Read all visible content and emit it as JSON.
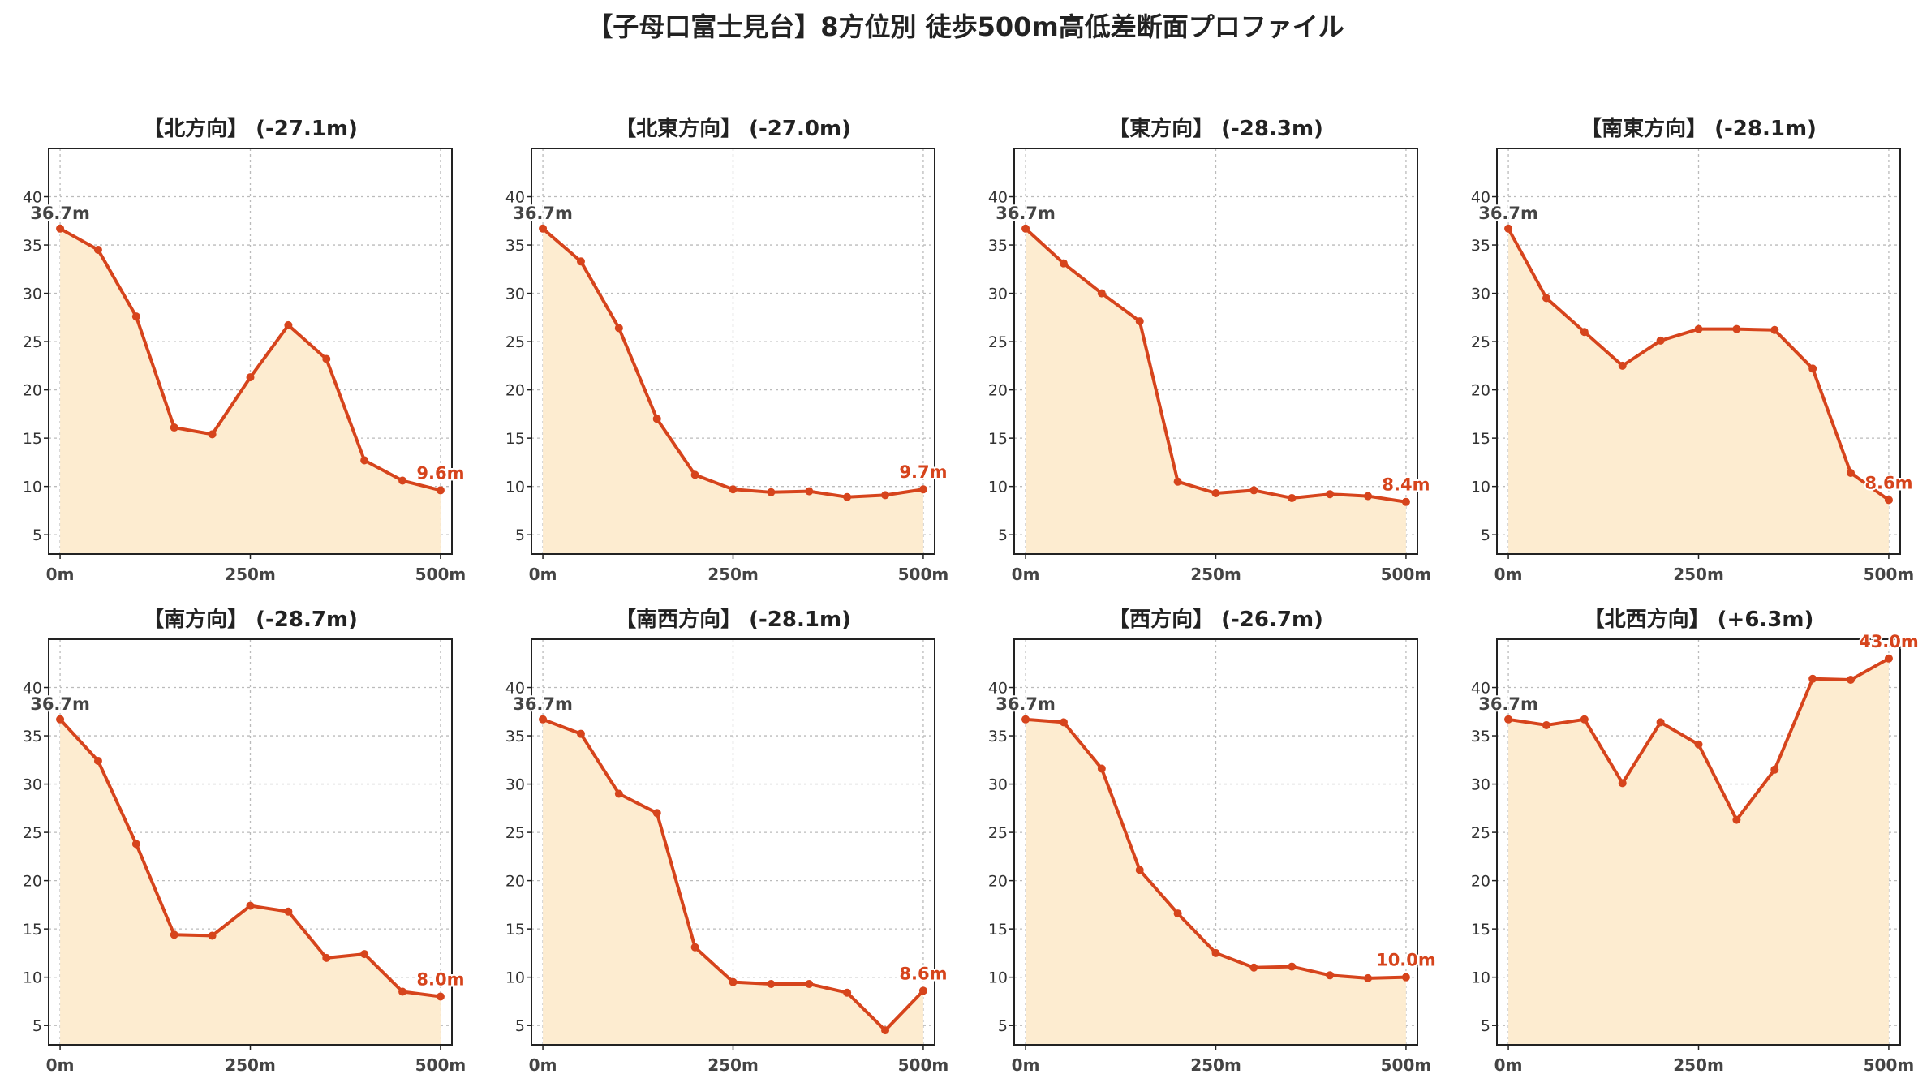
{
  "title": "【子母口富士見台】8方位別 徒歩500m高低差断面プロファイル",
  "colors": {
    "line": "#d6441c",
    "fill": "#fdecd0",
    "start_label": "#444444",
    "end_label": "#d6441c"
  },
  "chart_data": [
    {
      "type": "area",
      "title": "【北方向】 (-27.1m)",
      "x": [
        0,
        50,
        100,
        150,
        200,
        250,
        300,
        350,
        400,
        450,
        500
      ],
      "values": [
        36.7,
        34.5,
        27.6,
        16.1,
        15.4,
        21.3,
        26.7,
        23.2,
        12.7,
        10.6,
        9.6
      ],
      "start_label": "36.7m",
      "end_label": "9.6m",
      "x_ticks": [
        "0m",
        "250m",
        "500m"
      ],
      "y_ticks": [
        5,
        10,
        15,
        20,
        25,
        30,
        35,
        40
      ],
      "ylim": [
        3,
        45
      ],
      "xlim": [
        -15,
        515
      ],
      "grid": true
    },
    {
      "type": "area",
      "title": "【北東方向】 (-27.0m)",
      "x": [
        0,
        50,
        100,
        150,
        200,
        250,
        300,
        350,
        400,
        450,
        500
      ],
      "values": [
        36.7,
        33.3,
        26.4,
        17.0,
        11.2,
        9.7,
        9.4,
        9.5,
        8.9,
        9.1,
        9.7
      ],
      "start_label": "36.7m",
      "end_label": "9.7m",
      "x_ticks": [
        "0m",
        "250m",
        "500m"
      ],
      "y_ticks": [
        5,
        10,
        15,
        20,
        25,
        30,
        35,
        40
      ],
      "ylim": [
        3,
        45
      ],
      "xlim": [
        -15,
        515
      ],
      "grid": true
    },
    {
      "type": "area",
      "title": "【東方向】 (-28.3m)",
      "x": [
        0,
        50,
        100,
        150,
        200,
        250,
        300,
        350,
        400,
        450,
        500
      ],
      "values": [
        36.7,
        33.1,
        30.0,
        27.1,
        10.5,
        9.3,
        9.6,
        8.8,
        9.2,
        9.0,
        8.4
      ],
      "start_label": "36.7m",
      "end_label": "8.4m",
      "x_ticks": [
        "0m",
        "250m",
        "500m"
      ],
      "y_ticks": [
        5,
        10,
        15,
        20,
        25,
        30,
        35,
        40
      ],
      "ylim": [
        3,
        45
      ],
      "xlim": [
        -15,
        515
      ],
      "grid": true
    },
    {
      "type": "area",
      "title": "【南東方向】 (-28.1m)",
      "x": [
        0,
        50,
        100,
        150,
        200,
        250,
        300,
        350,
        400,
        450,
        500
      ],
      "values": [
        36.7,
        29.5,
        26.0,
        22.5,
        25.1,
        26.3,
        26.3,
        26.2,
        22.2,
        11.4,
        8.6
      ],
      "start_label": "36.7m",
      "end_label": "8.6m",
      "x_ticks": [
        "0m",
        "250m",
        "500m"
      ],
      "y_ticks": [
        5,
        10,
        15,
        20,
        25,
        30,
        35,
        40
      ],
      "ylim": [
        3,
        45
      ],
      "xlim": [
        -15,
        515
      ],
      "grid": true
    },
    {
      "type": "area",
      "title": "【南方向】 (-28.7m)",
      "x": [
        0,
        50,
        100,
        150,
        200,
        250,
        300,
        350,
        400,
        450,
        500
      ],
      "values": [
        36.7,
        32.4,
        23.8,
        14.4,
        14.3,
        17.4,
        16.8,
        12.0,
        12.4,
        8.5,
        8.0
      ],
      "start_label": "36.7m",
      "end_label": "8.0m",
      "x_ticks": [
        "0m",
        "250m",
        "500m"
      ],
      "y_ticks": [
        5,
        10,
        15,
        20,
        25,
        30,
        35,
        40
      ],
      "ylim": [
        3,
        45
      ],
      "xlim": [
        -15,
        515
      ],
      "grid": true
    },
    {
      "type": "area",
      "title": "【南西方向】 (-28.1m)",
      "x": [
        0,
        50,
        100,
        150,
        200,
        250,
        300,
        350,
        400,
        450,
        500
      ],
      "values": [
        36.7,
        35.2,
        29.0,
        27.0,
        13.1,
        9.5,
        9.3,
        9.3,
        8.4,
        4.5,
        8.6
      ],
      "start_label": "36.7m",
      "end_label": "8.6m",
      "x_ticks": [
        "0m",
        "250m",
        "500m"
      ],
      "y_ticks": [
        5,
        10,
        15,
        20,
        25,
        30,
        35,
        40
      ],
      "ylim": [
        3,
        45
      ],
      "xlim": [
        -15,
        515
      ],
      "grid": true
    },
    {
      "type": "area",
      "title": "【西方向】 (-26.7m)",
      "x": [
        0,
        50,
        100,
        150,
        200,
        250,
        300,
        350,
        400,
        450,
        500
      ],
      "values": [
        36.7,
        36.4,
        31.6,
        21.1,
        16.6,
        12.5,
        11.0,
        11.1,
        10.2,
        9.9,
        10.0
      ],
      "start_label": "36.7m",
      "end_label": "10.0m",
      "x_ticks": [
        "0m",
        "250m",
        "500m"
      ],
      "y_ticks": [
        5,
        10,
        15,
        20,
        25,
        30,
        35,
        40
      ],
      "ylim": [
        3,
        45
      ],
      "xlim": [
        -15,
        515
      ],
      "grid": true
    },
    {
      "type": "area",
      "title": "【北西方向】 (+6.3m)",
      "x": [
        0,
        50,
        100,
        150,
        200,
        250,
        300,
        350,
        400,
        450,
        500
      ],
      "values": [
        36.7,
        36.1,
        36.7,
        30.1,
        36.4,
        34.1,
        26.3,
        31.5,
        40.9,
        40.8,
        43.0
      ],
      "start_label": "36.7m",
      "end_label": "43.0m",
      "x_ticks": [
        "0m",
        "250m",
        "500m"
      ],
      "y_ticks": [
        5,
        10,
        15,
        20,
        25,
        30,
        35,
        40
      ],
      "ylim": [
        3,
        45
      ],
      "xlim": [
        -15,
        515
      ],
      "grid": true
    }
  ]
}
